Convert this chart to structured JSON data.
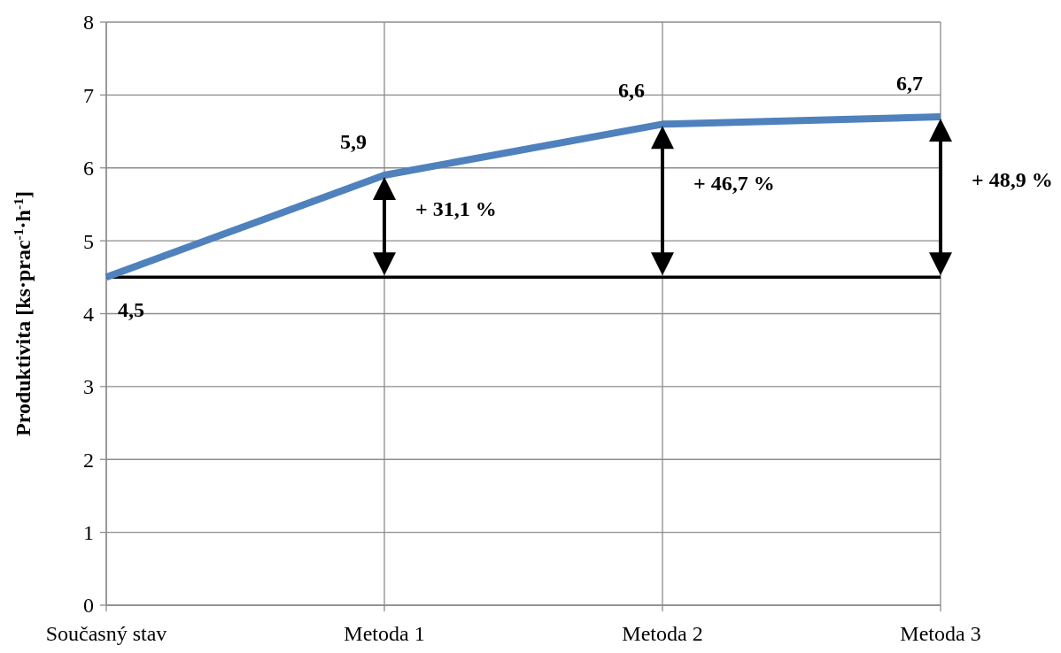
{
  "chart_data": {
    "type": "line",
    "ylabel": "Produktivita [ks·prac$^{-1}$·h$^{-1}$]",
    "categories": [
      "Současný stav",
      "Metoda 1",
      "Metoda 2",
      "Metoda 3"
    ],
    "series": [
      {
        "color": "#4f81bd",
        "values": [
          4.5,
          5.9,
          6.6,
          6.7
        ],
        "value_labels": [
          "4,5",
          "5,9",
          "6,6",
          "6,7"
        ]
      }
    ],
    "ylim": [
      0,
      8
    ],
    "yticks": [
      0,
      1,
      2,
      3,
      4,
      5,
      6,
      7,
      8
    ],
    "grid": true,
    "marker": "none",
    "line_style": "solid",
    "ref_lines": [
      {
        "axis": "y",
        "value": 4.5,
        "color": "#000000"
      }
    ],
    "annotations": [
      "+ 31,1 %",
      "+ 46,7 %",
      "+ 48,9 %"
    ]
  }
}
